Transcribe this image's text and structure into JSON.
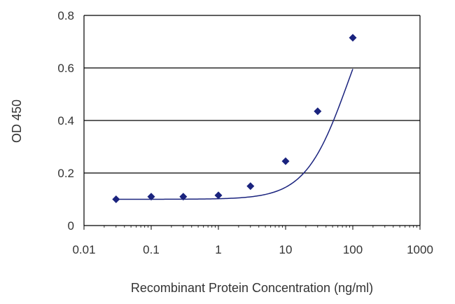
{
  "chart_data": {
    "type": "scatter",
    "title": "",
    "xlabel": "Recombinant Protein Concentration (ng/ml)",
    "ylabel": "OD 450",
    "x_scale": "log",
    "xlim": [
      0.01,
      1000
    ],
    "ylim": [
      0,
      0.8
    ],
    "x_ticks": [
      "0.01",
      "0.1",
      "1",
      "10",
      "100",
      "1000"
    ],
    "y_ticks": [
      "0",
      "0.2",
      "0.4",
      "0.6",
      "0.8"
    ],
    "grid": "horizontal",
    "legend": "none",
    "series": [
      {
        "x": [
          0.03,
          0.1,
          0.3,
          1,
          3,
          10,
          30,
          100
        ],
        "y": [
          0.1,
          0.11,
          0.11,
          0.115,
          0.15,
          0.245,
          0.435,
          0.715
        ],
        "marker": "diamond",
        "fitted_curve": true,
        "color": "#1a237e"
      }
    ],
    "colors": {
      "series": "#1a237e",
      "grid": "#000000",
      "axis": "#000000"
    }
  }
}
